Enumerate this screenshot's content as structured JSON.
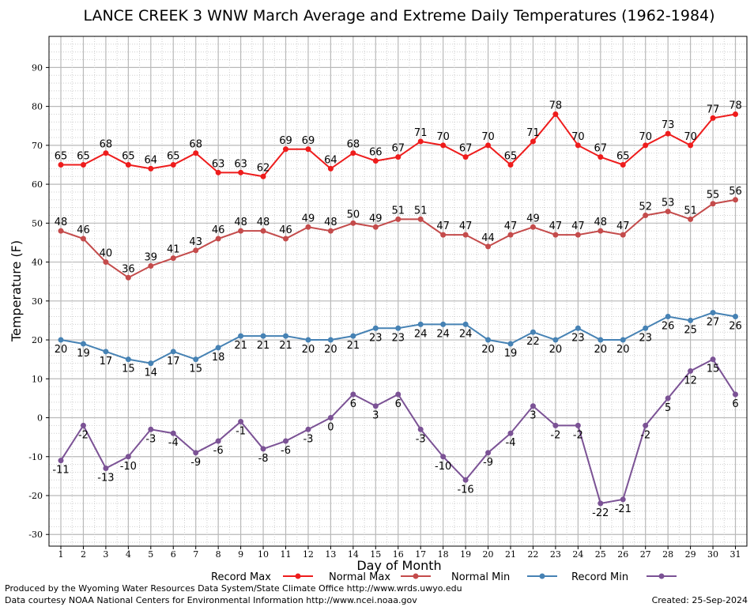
{
  "chart_data": {
    "type": "line",
    "title": "LANCE CREEK 3 WNW March Average and Extreme Daily Temperatures (1962-1984)",
    "xlabel": "Day of Month",
    "ylabel": "Temperature (F)",
    "ylim": [
      -33,
      98
    ],
    "yticks": [
      -30,
      -20,
      -10,
      0,
      10,
      20,
      30,
      40,
      50,
      60,
      70,
      80,
      90
    ],
    "x": [
      "1",
      "2",
      "3",
      "4",
      "5",
      "6",
      "7",
      "8",
      "9",
      "10",
      "11",
      "12",
      "13",
      "14",
      "15",
      "16",
      "17",
      "18",
      "19",
      "20",
      "21",
      "22",
      "23",
      "24",
      "25",
      "26",
      "27",
      "28",
      "29",
      "30",
      "31"
    ],
    "grid": true,
    "legend": "bottom",
    "series": [
      {
        "name": "Record Max",
        "color": "#ee1c1c",
        "label_pos": "above",
        "values": [
          65,
          65,
          68,
          65,
          64,
          65,
          68,
          63,
          63,
          62,
          69,
          69,
          64,
          68,
          66,
          67,
          71,
          70,
          67,
          70,
          65,
          71,
          78,
          70,
          67,
          65,
          70,
          73,
          70,
          77,
          78
        ]
      },
      {
        "name": "Normal Max",
        "color": "#c44b4b",
        "label_pos": "above",
        "values": [
          48,
          46,
          40,
          36,
          39,
          41,
          43,
          46,
          48,
          48,
          46,
          49,
          48,
          50,
          49,
          51,
          51,
          47,
          47,
          44,
          47,
          49,
          47,
          47,
          48,
          47,
          52,
          53,
          51,
          55,
          56
        ]
      },
      {
        "name": "Normal Min",
        "color": "#4682b4",
        "label_pos": "below",
        "values": [
          20,
          19,
          17,
          15,
          14,
          17,
          15,
          18,
          21,
          21,
          21,
          20,
          20,
          21,
          23,
          23,
          24,
          24,
          24,
          20,
          19,
          22,
          20,
          23,
          20,
          20,
          23,
          26,
          25,
          27,
          26
        ]
      },
      {
        "name": "Record Min",
        "color": "#7b5295",
        "label_pos": "below",
        "values": [
          -11,
          -2,
          -13,
          -10,
          -3,
          -4,
          -9,
          -6,
          -1,
          -8,
          -6,
          -3,
          0,
          6,
          3,
          6,
          -3,
          -10,
          -16,
          -9,
          -4,
          3,
          -2,
          -2,
          -22,
          -21,
          -2,
          5,
          12,
          15,
          6
        ]
      }
    ]
  },
  "footer": {
    "produced_by": "Produced by the Wyoming Water Resources Data System/State Climate Office http://www.wrds.uwyo.edu",
    "courtesy": "Data courtesy NOAA National Centers for Environmental Information http://www.ncei.noaa.gov",
    "created": "Created:  25-Sep-2024"
  }
}
